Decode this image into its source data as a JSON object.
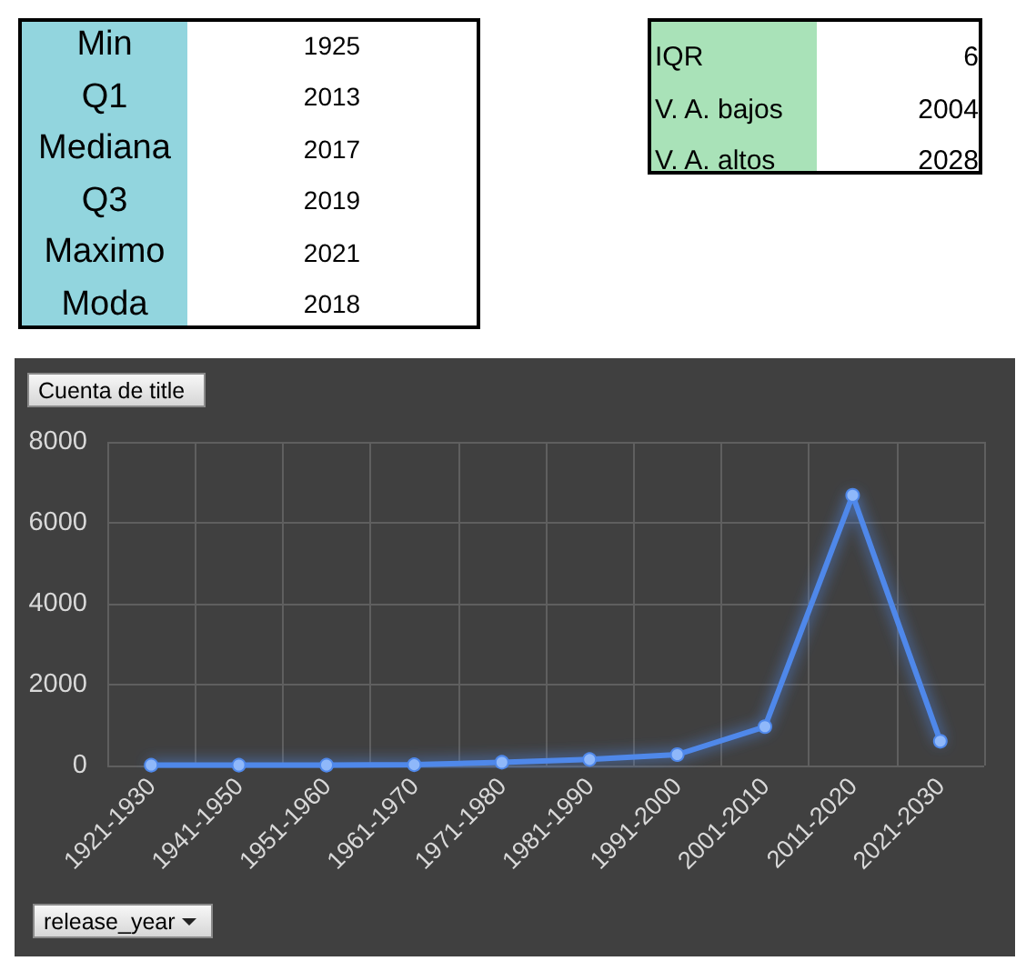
{
  "chart_data": [
    {
      "type": "other",
      "color": "#92d5de",
      "annotations": [
        "Min",
        "1925",
        "Q1",
        "2013",
        "Mediana",
        "2017",
        "Q3",
        "2019",
        "Maximo",
        "2021",
        "Moda",
        "2018"
      ]
    },
    {
      "type": "other",
      "color": "#a9e2b8",
      "annotations": [
        "IQR",
        "6",
        "V. A. bajos",
        "2004",
        "V. A. altos",
        "2028"
      ]
    },
    {
      "type": "line",
      "ylabel": "Cuenta de title",
      "xlabel": "release_year",
      "categories": [
        "1921-1930",
        "1941-1950",
        "1951-1960",
        "1961-1970",
        "1971-1980",
        "1981-1990",
        "1991-2000",
        "2001-2010",
        "2011-2020",
        "2021-2030"
      ],
      "values": [
        10,
        10,
        10,
        20,
        80,
        150,
        270,
        960,
        6680,
        600
      ],
      "color": "#4f88ea",
      "ylim": [
        0,
        8000
      ],
      "yticks": [
        0,
        2000,
        4000,
        6000,
        8000
      ],
      "grid": true,
      "marker": "circle",
      "line_style": "solid"
    }
  ]
}
